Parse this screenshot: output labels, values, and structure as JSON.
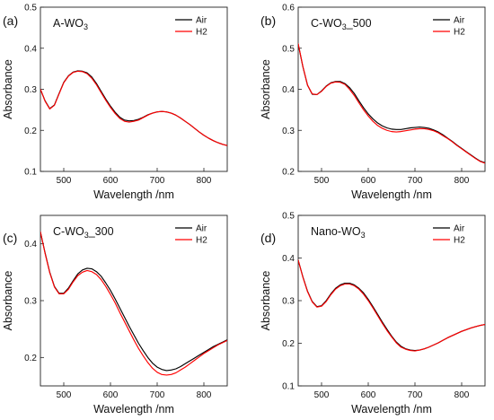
{
  "chart_data": [
    {
      "type": "line",
      "panel_label": "(a)",
      "sample_label": {
        "main": "A-WO",
        "sub": "3",
        "tail": ""
      },
      "xlabel": "Wavelength /nm",
      "ylabel": "Absorbance",
      "xlim": [
        450,
        850
      ],
      "ylim": [
        0.1,
        0.5
      ],
      "xticks": [
        500,
        600,
        700,
        800
      ],
      "yticks": [
        0.1,
        0.2,
        0.3,
        0.4,
        0.5
      ],
      "ytick_labels": [
        "0.1",
        "0.2",
        "0.3",
        "0.4",
        "0.5"
      ],
      "legend_position": "top-right",
      "x": [
        450,
        460,
        470,
        480,
        490,
        500,
        510,
        520,
        530,
        540,
        550,
        560,
        570,
        580,
        590,
        600,
        610,
        620,
        630,
        640,
        650,
        660,
        670,
        680,
        690,
        700,
        710,
        720,
        730,
        740,
        750,
        760,
        770,
        780,
        790,
        800,
        810,
        820,
        830,
        840,
        850
      ],
      "series": [
        {
          "name": "Air",
          "color": "#000000",
          "values": [
            0.3,
            0.272,
            0.253,
            0.262,
            0.29,
            0.317,
            0.333,
            0.342,
            0.345,
            0.344,
            0.34,
            0.33,
            0.314,
            0.295,
            0.276,
            0.259,
            0.244,
            0.232,
            0.225,
            0.223,
            0.224,
            0.227,
            0.232,
            0.238,
            0.242,
            0.245,
            0.246,
            0.245,
            0.242,
            0.237,
            0.23,
            0.222,
            0.214,
            0.205,
            0.196,
            0.188,
            0.181,
            0.175,
            0.17,
            0.166,
            0.163
          ]
        },
        {
          "name": "H2",
          "color": "#ff0000",
          "values": [
            0.3,
            0.271,
            0.252,
            0.261,
            0.289,
            0.316,
            0.332,
            0.341,
            0.344,
            0.343,
            0.338,
            0.327,
            0.311,
            0.292,
            0.273,
            0.256,
            0.241,
            0.229,
            0.222,
            0.22,
            0.222,
            0.225,
            0.231,
            0.237,
            0.242,
            0.245,
            0.246,
            0.245,
            0.242,
            0.237,
            0.23,
            0.222,
            0.214,
            0.205,
            0.196,
            0.188,
            0.181,
            0.175,
            0.17,
            0.166,
            0.163
          ]
        }
      ]
    },
    {
      "type": "line",
      "panel_label": "(b)",
      "sample_label": {
        "main": "C-WO",
        "sub": "3",
        "tail": "_500"
      },
      "xlabel": "Wavelength /nm",
      "ylabel": "Absorbance",
      "xlim": [
        450,
        850
      ],
      "ylim": [
        0.2,
        0.6
      ],
      "xticks": [
        500,
        600,
        700,
        800
      ],
      "yticks": [
        0.2,
        0.3,
        0.4,
        0.5,
        0.6
      ],
      "ytick_labels": [
        "0.2",
        "0.3",
        "0.4",
        "0.5",
        "0.6"
      ],
      "legend_position": "top-right",
      "x": [
        450,
        460,
        470,
        480,
        490,
        500,
        510,
        520,
        530,
        540,
        550,
        560,
        570,
        580,
        590,
        600,
        610,
        620,
        630,
        640,
        650,
        660,
        670,
        680,
        690,
        700,
        710,
        720,
        730,
        740,
        750,
        760,
        770,
        780,
        790,
        800,
        810,
        820,
        830,
        840,
        850
      ],
      "series": [
        {
          "name": "Air",
          "color": "#000000",
          "values": [
            0.51,
            0.455,
            0.41,
            0.388,
            0.387,
            0.396,
            0.408,
            0.416,
            0.419,
            0.419,
            0.414,
            0.404,
            0.39,
            0.372,
            0.355,
            0.34,
            0.328,
            0.318,
            0.311,
            0.306,
            0.303,
            0.302,
            0.302,
            0.304,
            0.306,
            0.307,
            0.308,
            0.307,
            0.305,
            0.301,
            0.296,
            0.289,
            0.281,
            0.273,
            0.264,
            0.256,
            0.248,
            0.24,
            0.232,
            0.225,
            0.221
          ]
        },
        {
          "name": "H2",
          "color": "#ff0000",
          "values": [
            0.511,
            0.456,
            0.41,
            0.389,
            0.387,
            0.395,
            0.407,
            0.415,
            0.418,
            0.417,
            0.412,
            0.4,
            0.385,
            0.367,
            0.35,
            0.335,
            0.322,
            0.312,
            0.305,
            0.3,
            0.297,
            0.296,
            0.297,
            0.299,
            0.301,
            0.303,
            0.304,
            0.304,
            0.302,
            0.299,
            0.294,
            0.287,
            0.28,
            0.272,
            0.263,
            0.255,
            0.247,
            0.239,
            0.231,
            0.224,
            0.22
          ]
        }
      ]
    },
    {
      "type": "line",
      "panel_label": "(c)",
      "sample_label": {
        "main": "C-WO",
        "sub": "3",
        "tail": "_300"
      },
      "xlabel": "Wavelength /nm",
      "ylabel": "Absorbance",
      "xlim": [
        450,
        850
      ],
      "ylim": [
        0.15,
        0.45
      ],
      "xticks": [
        500,
        600,
        700,
        800
      ],
      "yticks": [
        0.2,
        0.3,
        0.4
      ],
      "ytick_labels": [
        "0.2",
        "0.3",
        "0.4"
      ],
      "legend_position": "top-right",
      "x": [
        450,
        460,
        470,
        480,
        490,
        500,
        510,
        520,
        530,
        540,
        550,
        560,
        570,
        580,
        590,
        600,
        610,
        620,
        630,
        640,
        650,
        660,
        670,
        680,
        690,
        700,
        710,
        720,
        730,
        740,
        750,
        760,
        770,
        780,
        790,
        800,
        810,
        820,
        830,
        840,
        850
      ],
      "series": [
        {
          "name": "Air",
          "color": "#000000",
          "values": [
            0.421,
            0.384,
            0.35,
            0.325,
            0.313,
            0.313,
            0.322,
            0.335,
            0.347,
            0.354,
            0.357,
            0.356,
            0.351,
            0.343,
            0.331,
            0.318,
            0.303,
            0.287,
            0.271,
            0.255,
            0.24,
            0.225,
            0.212,
            0.2,
            0.19,
            0.183,
            0.179,
            0.177,
            0.178,
            0.18,
            0.184,
            0.189,
            0.194,
            0.199,
            0.204,
            0.209,
            0.214,
            0.219,
            0.223,
            0.227,
            0.231
          ]
        },
        {
          "name": "H2",
          "color": "#ff0000",
          "values": [
            0.421,
            0.383,
            0.349,
            0.324,
            0.312,
            0.312,
            0.32,
            0.333,
            0.344,
            0.35,
            0.353,
            0.351,
            0.346,
            0.337,
            0.325,
            0.311,
            0.296,
            0.279,
            0.263,
            0.247,
            0.231,
            0.216,
            0.203,
            0.191,
            0.181,
            0.174,
            0.17,
            0.169,
            0.17,
            0.173,
            0.178,
            0.183,
            0.189,
            0.195,
            0.201,
            0.207,
            0.212,
            0.217,
            0.222,
            0.226,
            0.23
          ]
        }
      ]
    },
    {
      "type": "line",
      "panel_label": "(d)",
      "sample_label": {
        "main": "Nano-WO",
        "sub": "3",
        "tail": ""
      },
      "xlabel": "Wavelength /nm",
      "ylabel": "Absorbance",
      "xlim": [
        450,
        850
      ],
      "ylim": [
        0.1,
        0.5
      ],
      "xticks": [
        500,
        600,
        700,
        800
      ],
      "yticks": [
        0.1,
        0.2,
        0.3,
        0.4,
        0.5
      ],
      "ytick_labels": [
        "0.1",
        "0.2",
        "0.3",
        "0.4",
        "0.5"
      ],
      "legend_position": "top-right",
      "x": [
        450,
        460,
        470,
        480,
        490,
        500,
        510,
        520,
        530,
        540,
        550,
        560,
        570,
        580,
        590,
        600,
        610,
        620,
        630,
        640,
        650,
        660,
        670,
        680,
        690,
        700,
        710,
        720,
        730,
        740,
        750,
        760,
        770,
        780,
        790,
        800,
        810,
        820,
        830,
        840,
        850
      ],
      "series": [
        {
          "name": "Air",
          "color": "#000000",
          "values": [
            0.395,
            0.356,
            0.322,
            0.298,
            0.286,
            0.288,
            0.3,
            0.316,
            0.329,
            0.337,
            0.341,
            0.341,
            0.337,
            0.329,
            0.318,
            0.303,
            0.286,
            0.268,
            0.25,
            0.233,
            0.217,
            0.203,
            0.193,
            0.187,
            0.184,
            0.183,
            0.184,
            0.187,
            0.191,
            0.196,
            0.201,
            0.207,
            0.213,
            0.218,
            0.223,
            0.228,
            0.232,
            0.236,
            0.239,
            0.242,
            0.244
          ]
        },
        {
          "name": "H2",
          "color": "#ff0000",
          "values": [
            0.395,
            0.355,
            0.321,
            0.297,
            0.285,
            0.287,
            0.298,
            0.314,
            0.327,
            0.335,
            0.339,
            0.339,
            0.335,
            0.327,
            0.315,
            0.3,
            0.283,
            0.265,
            0.247,
            0.23,
            0.215,
            0.201,
            0.191,
            0.186,
            0.183,
            0.182,
            0.184,
            0.187,
            0.191,
            0.196,
            0.201,
            0.207,
            0.213,
            0.218,
            0.223,
            0.228,
            0.232,
            0.236,
            0.239,
            0.242,
            0.244
          ]
        }
      ]
    }
  ]
}
